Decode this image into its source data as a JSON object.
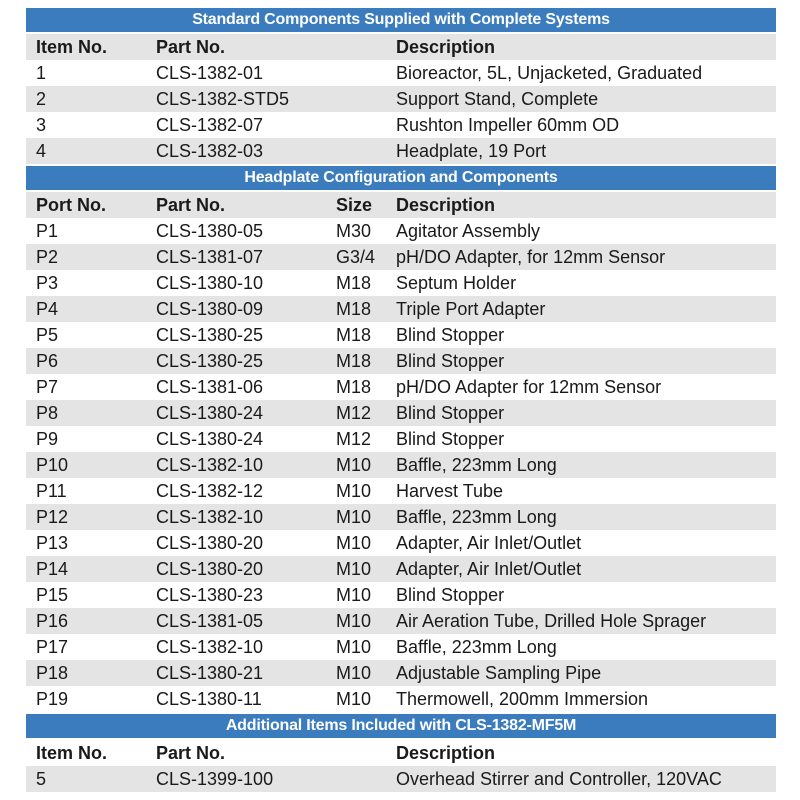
{
  "colors": {
    "section_header_bg": "#3b7cbe",
    "section_header_text": "#ffffff",
    "row_shade": "#e4e4e4",
    "body_text": "#1a1a1a"
  },
  "sections": [
    {
      "title": "Standard Components Supplied with Complete Systems",
      "columns": [
        "Item No.",
        "Part No.",
        "Description"
      ],
      "rows": [
        [
          "1",
          "CLS-1382-01",
          "Bioreactor, 5L, Unjacketed, Graduated"
        ],
        [
          "2",
          "CLS-1382-STD5",
          "Support Stand, Complete"
        ],
        [
          "3",
          "CLS-1382-07",
          "Rushton Impeller 60mm OD"
        ],
        [
          "4",
          "CLS-1382-03",
          "Headplate, 19 Port"
        ]
      ]
    },
    {
      "title": "Headplate Configuration and Components",
      "columns": [
        "Port No.",
        "Part No.",
        "Size",
        "Description"
      ],
      "rows": [
        [
          "P1",
          "CLS-1380-05",
          "M30",
          "Agitator Assembly"
        ],
        [
          "P2",
          "CLS-1381-07",
          "G3/4",
          "pH/DO Adapter, for 12mm Sensor"
        ],
        [
          "P3",
          "CLS-1380-10",
          "M18",
          "Septum Holder"
        ],
        [
          "P4",
          "CLS-1380-09",
          "M18",
          "Triple Port Adapter"
        ],
        [
          "P5",
          "CLS-1380-25",
          "M18",
          "Blind Stopper"
        ],
        [
          "P6",
          "CLS-1380-25",
          "M18",
          "Blind Stopper"
        ],
        [
          "P7",
          "CLS-1381-06",
          "M18",
          "pH/DO Adapter for 12mm Sensor"
        ],
        [
          "P8",
          "CLS-1380-24",
          "M12",
          "Blind Stopper"
        ],
        [
          "P9",
          "CLS-1380-24",
          "M12",
          "Blind Stopper"
        ],
        [
          "P10",
          "CLS-1382-10",
          "M10",
          "Baffle, 223mm Long"
        ],
        [
          "P11",
          "CLS-1382-12",
          "M10",
          "Harvest Tube"
        ],
        [
          "P12",
          "CLS-1382-10",
          "M10",
          "Baffle, 223mm Long"
        ],
        [
          "P13",
          "CLS-1380-20",
          "M10",
          "Adapter, Air Inlet/Outlet"
        ],
        [
          "P14",
          "CLS-1380-20",
          "M10",
          "Adapter, Air Inlet/Outlet"
        ],
        [
          "P15",
          "CLS-1380-23",
          "M10",
          "Blind Stopper"
        ],
        [
          "P16",
          "CLS-1381-05",
          "M10",
          "Air Aeration Tube, Drilled Hole Sprager"
        ],
        [
          "P17",
          "CLS-1382-10",
          "M10",
          "Baffle, 223mm Long"
        ],
        [
          "P18",
          "CLS-1380-21",
          "M10",
          "Adjustable Sampling Pipe"
        ],
        [
          "P19",
          "CLS-1380-11",
          "M10",
          "Thermowell, 200mm Immersion"
        ]
      ]
    },
    {
      "title": "Additional Items Included with CLS-1382-MF5M",
      "columns": [
        "Item No.",
        "Part No.",
        "Description"
      ],
      "rows": [
        [
          "5",
          "CLS-1399-100",
          "Overhead Stirrer and Controller, 120VAC"
        ]
      ]
    }
  ]
}
